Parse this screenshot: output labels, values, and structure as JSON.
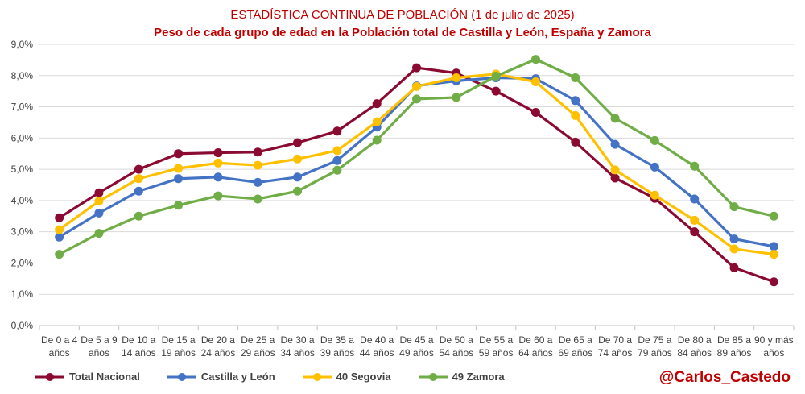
{
  "chart_data": {
    "type": "line",
    "title": "ESTADÍSTICA CONTINUA DE POBLACIÓN (1 de julio de 2025)",
    "subtitle": "Peso de cada grupo de edad en la Población total de Castilla y León, España y Zamora",
    "categories": [
      [
        "De 0 a 4",
        "años"
      ],
      [
        "De 5 a 9",
        "años"
      ],
      [
        "De 10 a",
        "14 años"
      ],
      [
        "De 15 a",
        "19 años"
      ],
      [
        "De 20 a",
        "24 años"
      ],
      [
        "De 25 a",
        "29 años"
      ],
      [
        "De 30 a",
        "34 años"
      ],
      [
        "De 35 a",
        "39 años"
      ],
      [
        "De 40 a",
        "44 años"
      ],
      [
        "De 45 a",
        "49 años"
      ],
      [
        "De 50 a",
        "54 años"
      ],
      [
        "De 55 a",
        "59 años"
      ],
      [
        "De 60 a",
        "64 años"
      ],
      [
        "De 65 a",
        "69 años"
      ],
      [
        "De 70 a",
        "74 años"
      ],
      [
        "De 75 a",
        "79 años"
      ],
      [
        "De 80 a",
        "84 años"
      ],
      [
        "De 85 a",
        "89 años"
      ],
      [
        "90 y más",
        "años"
      ]
    ],
    "ylim": [
      0,
      9
    ],
    "yticks": [
      "0,0%",
      "1,0%",
      "2,0%",
      "3,0%",
      "4,0%",
      "5,0%",
      "6,0%",
      "7,0%",
      "8,0%",
      "9,0%"
    ],
    "grid": true,
    "legend_position": "bottom-left",
    "series": [
      {
        "name": "Total Nacional",
        "color": "#8b0a32",
        "values": [
          3.45,
          4.25,
          5.0,
          5.5,
          5.53,
          5.55,
          5.85,
          6.22,
          7.1,
          8.25,
          8.08,
          7.5,
          6.82,
          5.87,
          4.72,
          4.07,
          3.0,
          1.85,
          1.4
        ]
      },
      {
        "name": "Castilla y León",
        "color": "#4472c4",
        "values": [
          2.83,
          3.6,
          4.3,
          4.7,
          4.75,
          4.58,
          4.75,
          5.28,
          6.35,
          7.67,
          7.83,
          7.93,
          7.9,
          7.2,
          5.8,
          5.07,
          4.05,
          2.77,
          2.53
        ]
      },
      {
        "name": "40 Segovia",
        "color": "#ffc000",
        "values": [
          3.07,
          3.98,
          4.7,
          5.03,
          5.2,
          5.13,
          5.33,
          5.6,
          6.52,
          7.65,
          7.93,
          8.05,
          7.8,
          6.72,
          4.98,
          4.17,
          3.37,
          2.45,
          2.28
        ]
      },
      {
        "name": "49 Zamora",
        "color": "#70ad47",
        "values": [
          2.28,
          2.95,
          3.5,
          3.85,
          4.15,
          4.05,
          4.3,
          4.97,
          5.93,
          7.25,
          7.3,
          7.98,
          8.52,
          7.93,
          6.63,
          5.92,
          5.1,
          3.8,
          3.5
        ]
      }
    ]
  },
  "watermark": "@Carlos_Castedo"
}
